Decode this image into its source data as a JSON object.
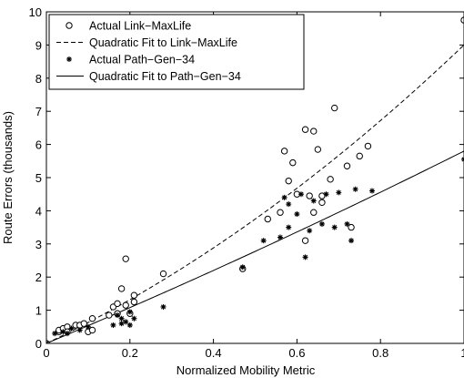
{
  "chart_data": {
    "type": "scatter",
    "title": "",
    "xlabel": "Normalized Mobility Metric",
    "ylabel": "Route Errors (thousands)",
    "xlim": [
      0,
      1
    ],
    "ylim": [
      0,
      10
    ],
    "x_ticks": [
      0,
      0.2,
      0.4,
      0.6,
      0.8,
      1
    ],
    "x_tick_labels": [
      "0",
      "0.2",
      "0.4",
      "0.6",
      "0.8",
      "1"
    ],
    "y_ticks": [
      0,
      1,
      2,
      3,
      4,
      5,
      6,
      7,
      8,
      9,
      10
    ],
    "y_tick_labels": [
      "0",
      "1",
      "2",
      "3",
      "4",
      "5",
      "6",
      "7",
      "8",
      "9",
      "10"
    ],
    "grid": false,
    "legend_position": "top-left",
    "series": [
      {
        "name": "Actual Link−MaxLife",
        "kind": "scatter",
        "marker": "circle-open",
        "points": [
          [
            0.0,
            0.0
          ],
          [
            0.03,
            0.35
          ],
          [
            0.03,
            0.4
          ],
          [
            0.04,
            0.45
          ],
          [
            0.05,
            0.5
          ],
          [
            0.05,
            0.35
          ],
          [
            0.07,
            0.55
          ],
          [
            0.08,
            0.55
          ],
          [
            0.09,
            0.6
          ],
          [
            0.1,
            0.35
          ],
          [
            0.11,
            0.75
          ],
          [
            0.11,
            0.4
          ],
          [
            0.15,
            0.85
          ],
          [
            0.16,
            1.1
          ],
          [
            0.17,
            1.2
          ],
          [
            0.17,
            0.9
          ],
          [
            0.19,
            1.15
          ],
          [
            0.2,
            0.9
          ],
          [
            0.21,
            1.25
          ],
          [
            0.21,
            1.45
          ],
          [
            0.18,
            1.65
          ],
          [
            0.19,
            2.55
          ],
          [
            0.28,
            2.1
          ],
          [
            0.47,
            2.25
          ],
          [
            0.53,
            3.75
          ],
          [
            0.56,
            3.95
          ],
          [
            0.57,
            5.8
          ],
          [
            0.58,
            4.9
          ],
          [
            0.59,
            5.45
          ],
          [
            0.6,
            4.5
          ],
          [
            0.62,
            6.45
          ],
          [
            0.64,
            6.4
          ],
          [
            0.65,
            5.85
          ],
          [
            0.63,
            4.45
          ],
          [
            0.62,
            3.1
          ],
          [
            0.64,
            3.95
          ],
          [
            0.66,
            4.25
          ],
          [
            0.66,
            4.45
          ],
          [
            0.68,
            4.95
          ],
          [
            0.69,
            7.1
          ],
          [
            0.72,
            5.35
          ],
          [
            0.73,
            3.5
          ],
          [
            0.75,
            5.65
          ],
          [
            0.77,
            5.95
          ],
          [
            1.0,
            9.75
          ]
        ]
      },
      {
        "name": "Quadratic Fit to Link−MaxLife",
        "kind": "line",
        "style": "dashed",
        "coefficients": [
          0.0,
          6.0,
          3.0
        ]
      },
      {
        "name": "Actual Path−Gen−34",
        "kind": "scatter",
        "marker": "asterisk",
        "points": [
          [
            0.0,
            0.0
          ],
          [
            0.02,
            0.3
          ],
          [
            0.04,
            0.35
          ],
          [
            0.05,
            0.3
          ],
          [
            0.06,
            0.45
          ],
          [
            0.08,
            0.4
          ],
          [
            0.1,
            0.5
          ],
          [
            0.16,
            0.55
          ],
          [
            0.17,
            0.85
          ],
          [
            0.18,
            0.6
          ],
          [
            0.18,
            0.75
          ],
          [
            0.19,
            0.65
          ],
          [
            0.2,
            0.95
          ],
          [
            0.21,
            0.75
          ],
          [
            0.2,
            0.55
          ],
          [
            0.28,
            1.1
          ],
          [
            0.47,
            2.3
          ],
          [
            0.52,
            3.1
          ],
          [
            0.56,
            3.2
          ],
          [
            0.57,
            4.4
          ],
          [
            0.58,
            3.5
          ],
          [
            0.58,
            4.2
          ],
          [
            0.6,
            3.9
          ],
          [
            0.61,
            4.5
          ],
          [
            0.62,
            2.6
          ],
          [
            0.63,
            3.4
          ],
          [
            0.64,
            4.3
          ],
          [
            0.66,
            3.6
          ],
          [
            0.67,
            4.5
          ],
          [
            0.69,
            3.5
          ],
          [
            0.7,
            4.55
          ],
          [
            0.72,
            3.6
          ],
          [
            0.73,
            3.1
          ],
          [
            0.74,
            4.65
          ],
          [
            0.78,
            4.6
          ],
          [
            1.0,
            5.55
          ]
        ]
      },
      {
        "name": "Quadratic Fit to Path−Gen−34",
        "kind": "line",
        "style": "solid",
        "coefficients": [
          0.0,
          5.3,
          0.5
        ]
      }
    ]
  }
}
